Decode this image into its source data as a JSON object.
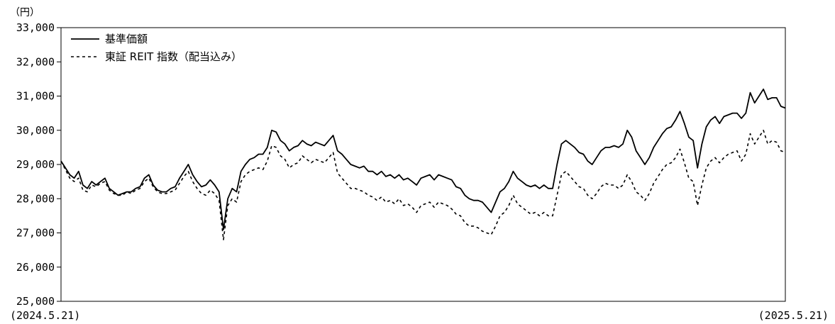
{
  "chart_data": {
    "type": "line",
    "unit_label": "（円）",
    "ylim": [
      25000,
      33000
    ],
    "y_ticks": [
      33000,
      32000,
      31000,
      30000,
      29000,
      28000,
      27000,
      26000,
      25000
    ],
    "y_tick_labels": [
      "33,000",
      "32,000",
      "31,000",
      "30,000",
      "29,000",
      "28,000",
      "27,000",
      "26,000",
      "25,000"
    ],
    "x_start_label": "(2024.5.21)",
    "x_end_label": "(2025.5.21)",
    "grid": false,
    "legend_placement": "top-left",
    "series": [
      {
        "name": "基準価額",
        "style": "solid",
        "color": "#000000",
        "values": [
          29100,
          28900,
          28700,
          28600,
          28800,
          28400,
          28300,
          28500,
          28400,
          28500,
          28600,
          28300,
          28200,
          28100,
          28150,
          28200,
          28200,
          28300,
          28350,
          28600,
          28700,
          28400,
          28250,
          28200,
          28200,
          28300,
          28350,
          28600,
          28800,
          29000,
          28700,
          28500,
          28350,
          28400,
          28550,
          28400,
          28200,
          27100,
          28000,
          28300,
          28200,
          28800,
          29000,
          29150,
          29200,
          29300,
          29300,
          29500,
          30000,
          29950,
          29700,
          29600,
          29400,
          29500,
          29550,
          29700,
          29600,
          29550,
          29650,
          29600,
          29550,
          29700,
          29850,
          29400,
          29300,
          29150,
          29000,
          28950,
          28900,
          28950,
          28800,
          28800,
          28700,
          28800,
          28650,
          28700,
          28600,
          28700,
          28550,
          28600,
          28500,
          28400,
          28600,
          28650,
          28700,
          28550,
          28700,
          28650,
          28600,
          28550,
          28350,
          28300,
          28100,
          28000,
          27950,
          27950,
          27900,
          27750,
          27600,
          27900,
          28200,
          28300,
          28500,
          28800,
          28600,
          28500,
          28400,
          28350,
          28400,
          28300,
          28400,
          28300,
          28300,
          29000,
          29600,
          29700,
          29600,
          29500,
          29350,
          29300,
          29100,
          29000,
          29200,
          29400,
          29500,
          29500,
          29550,
          29500,
          29600,
          30000,
          29800,
          29400,
          29200,
          29000,
          29200,
          29500,
          29700,
          29900,
          30050,
          30100,
          30300,
          30550,
          30200,
          29800,
          29700,
          28900,
          29600,
          30100,
          30300,
          30400,
          30200,
          30400,
          30450,
          30500,
          30500,
          30350,
          30500,
          31100,
          30800,
          31000,
          31200,
          30900,
          30950,
          30950,
          30700,
          30650
        ]
      },
      {
        "name": "東証 REIT 指数（配当込み）",
        "style": "dashed",
        "color": "#000000",
        "values": [
          29100,
          28850,
          28600,
          28500,
          28600,
          28250,
          28200,
          28400,
          28350,
          28450,
          28500,
          28250,
          28150,
          28100,
          28100,
          28200,
          28150,
          28250,
          28300,
          28500,
          28600,
          28350,
          28200,
          28150,
          28150,
          28200,
          28250,
          28450,
          28650,
          28800,
          28500,
          28300,
          28150,
          28100,
          28250,
          28150,
          27950,
          26800,
          27800,
          28000,
          27900,
          28500,
          28700,
          28800,
          28850,
          28900,
          28850,
          29100,
          29550,
          29500,
          29250,
          29150,
          28900,
          29000,
          29050,
          29250,
          29150,
          29050,
          29150,
          29100,
          29050,
          29200,
          29350,
          28750,
          28600,
          28450,
          28300,
          28300,
          28250,
          28200,
          28100,
          28050,
          27950,
          28050,
          27900,
          27950,
          27850,
          28000,
          27800,
          27850,
          27750,
          27600,
          27800,
          27850,
          27900,
          27750,
          27900,
          27850,
          27800,
          27700,
          27550,
          27500,
          27300,
          27200,
          27200,
          27150,
          27050,
          27000,
          26950,
          27200,
          27500,
          27600,
          27800,
          28100,
          27850,
          27750,
          27650,
          27550,
          27600,
          27500,
          27600,
          27500,
          27500,
          28100,
          28700,
          28800,
          28650,
          28500,
          28350,
          28300,
          28100,
          28000,
          28150,
          28350,
          28450,
          28400,
          28400,
          28300,
          28400,
          28700,
          28500,
          28200,
          28100,
          27950,
          28150,
          28450,
          28650,
          28850,
          29000,
          29050,
          29200,
          29450,
          29050,
          28600,
          28500,
          27800,
          28400,
          28900,
          29100,
          29200,
          29050,
          29200,
          29300,
          29350,
          29400,
          29100,
          29300,
          29900,
          29600,
          29800,
          30000,
          29600,
          29700,
          29650,
          29400,
          29350
        ]
      }
    ]
  }
}
